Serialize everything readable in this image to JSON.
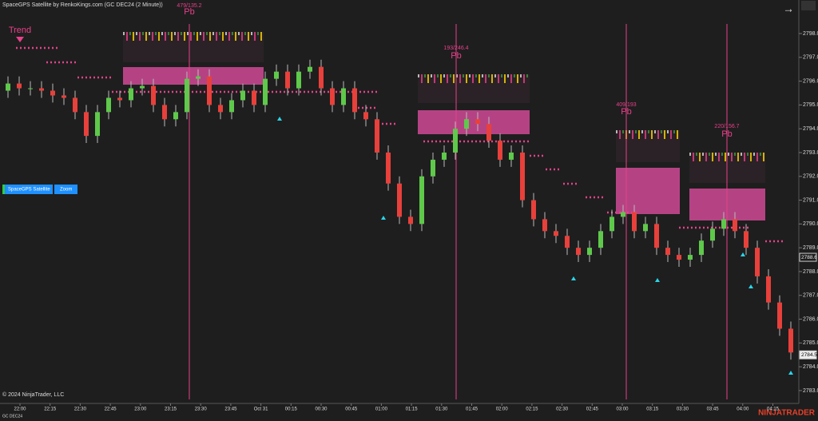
{
  "window": {
    "instrument": "GC DEC24",
    "copyright": "© 2024 NinjaTrader, LLC",
    "logo": "NINJATRADER",
    "buttons": [
      "SpaceGPS Satellite",
      "Zoom"
    ]
  },
  "chart_data": {
    "type": "candlestick",
    "title": "SpaceGPS Satellite by RenkoKings.com (GC DEC24 (2 Minute))",
    "up_color": "#5ec94a",
    "down_color": "#e8403b",
    "open": [
      2795.6,
      2795.9,
      2795.7,
      2795.7,
      2795.6,
      2795.4,
      2795.3,
      2794.7,
      2793.7,
      2794.7,
      2795.3,
      2795.2,
      2795.7,
      2795.8,
      2795.0,
      2794.4,
      2794.7,
      2796.1,
      2796.2,
      2795.0,
      2794.7,
      2795.2,
      2795.6,
      2795.0,
      2796.1,
      2796.4,
      2795.7,
      2796.4,
      2796.6,
      2795.7,
      2795.0,
      2795.7,
      2794.7,
      2794.4,
      2793.0,
      2791.7,
      2790.3,
      2790.0,
      2792.0,
      2792.7,
      2793.0,
      2794.0,
      2794.4,
      2794.2,
      2793.5,
      2792.7,
      2793.0,
      2791.0,
      2790.2,
      2789.7,
      2789.5,
      2789.0,
      2788.7,
      2789.0,
      2789.7,
      2790.3,
      2790.5,
      2789.7,
      2790.0,
      2789.0,
      2788.7,
      2788.5,
      2788.7,
      2789.3,
      2789.8,
      2790.2,
      2789.7,
      2789.0,
      2787.8,
      2786.7,
      2785.6
    ],
    "high": [
      2796.2,
      2796.2,
      2796.0,
      2796.0,
      2795.9,
      2795.7,
      2795.6,
      2795.0,
      2795.0,
      2795.6,
      2795.6,
      2796.0,
      2796.1,
      2796.1,
      2795.3,
      2795.0,
      2796.4,
      2796.5,
      2796.5,
      2795.3,
      2795.5,
      2795.9,
      2795.9,
      2796.4,
      2796.7,
      2796.7,
      2796.7,
      2796.9,
      2796.9,
      2796.0,
      2796.0,
      2796.0,
      2795.0,
      2794.7,
      2793.3,
      2792.0,
      2790.6,
      2792.3,
      2793.0,
      2793.3,
      2794.3,
      2794.7,
      2794.7,
      2794.5,
      2793.8,
      2793.3,
      2793.3,
      2791.3,
      2790.5,
      2790.0,
      2789.8,
      2789.3,
      2789.3,
      2790.0,
      2790.6,
      2790.8,
      2790.8,
      2790.3,
      2790.3,
      2789.3,
      2789.0,
      2789.0,
      2789.6,
      2790.1,
      2790.5,
      2790.5,
      2790.0,
      2789.3,
      2788.1,
      2787.0,
      2785.9
    ],
    "low": [
      2795.3,
      2795.4,
      2795.4,
      2795.3,
      2795.1,
      2795.0,
      2794.4,
      2793.4,
      2793.4,
      2794.4,
      2794.9,
      2794.9,
      2795.4,
      2794.7,
      2794.1,
      2794.1,
      2794.4,
      2795.8,
      2794.7,
      2794.4,
      2794.4,
      2794.9,
      2794.7,
      2794.7,
      2795.8,
      2795.4,
      2795.4,
      2796.1,
      2795.4,
      2794.7,
      2794.7,
      2794.4,
      2794.1,
      2792.7,
      2791.4,
      2790.0,
      2789.7,
      2789.7,
      2791.7,
      2792.4,
      2792.7,
      2793.7,
      2793.9,
      2793.2,
      2792.4,
      2792.4,
      2790.7,
      2789.9,
      2789.4,
      2789.2,
      2788.7,
      2788.4,
      2788.4,
      2788.7,
      2789.4,
      2790.0,
      2789.4,
      2789.4,
      2788.7,
      2788.4,
      2788.2,
      2788.2,
      2788.4,
      2789.0,
      2789.5,
      2789.4,
      2788.7,
      2787.5,
      2786.4,
      2785.3,
      2784.3
    ],
    "close": [
      2795.9,
      2795.7,
      2795.7,
      2795.6,
      2795.4,
      2795.3,
      2794.7,
      2793.7,
      2794.7,
      2795.3,
      2795.2,
      2795.7,
      2795.8,
      2795.0,
      2794.4,
      2794.7,
      2796.1,
      2796.2,
      2795.0,
      2794.7,
      2795.2,
      2795.6,
      2795.0,
      2796.1,
      2796.4,
      2795.7,
      2796.4,
      2796.6,
      2795.7,
      2795.0,
      2795.7,
      2794.7,
      2794.4,
      2793.0,
      2791.7,
      2790.3,
      2790.0,
      2792.0,
      2792.7,
      2793.0,
      2794.0,
      2794.4,
      2794.2,
      2793.5,
      2792.7,
      2793.0,
      2791.0,
      2790.2,
      2789.7,
      2789.5,
      2789.0,
      2788.7,
      2789.0,
      2789.7,
      2790.3,
      2790.5,
      2789.7,
      2790.0,
      2789.0,
      2788.7,
      2788.5,
      2788.7,
      2789.3,
      2789.8,
      2790.2,
      2789.7,
      2789.0,
      2787.8,
      2786.7,
      2785.6,
      2784.6
    ],
    "ylim": [
      2782.46,
      2799.41
    ],
    "yticks": [
      {
        "value": 2783,
        "label": "2783.0"
      },
      {
        "value": 2784,
        "label": "2784.0"
      },
      {
        "value": 2785,
        "label": "2785.0"
      },
      {
        "value": 2786,
        "label": "2786.0"
      },
      {
        "value": 2787,
        "label": "2787.0"
      },
      {
        "value": 2788,
        "label": "2788.0"
      },
      {
        "value": 2789,
        "label": "2789.0"
      },
      {
        "value": 2790,
        "label": "2790.0"
      },
      {
        "value": 2791,
        "label": "2791.0"
      },
      {
        "value": 2792,
        "label": "2792.0"
      },
      {
        "value": 2793,
        "label": "2793.0"
      },
      {
        "value": 2794,
        "label": "2794.0"
      },
      {
        "value": 2795,
        "label": "2795.0"
      },
      {
        "value": 2796,
        "label": "2796.0"
      },
      {
        "value": 2797,
        "label": "2797.0"
      },
      {
        "value": 2798,
        "label": "2798.0"
      }
    ],
    "xtick_labels": [
      "22:00",
      "22:15",
      "22:30",
      "22:45",
      "23:00",
      "23:15",
      "23:30",
      "23:45",
      "Oct 31",
      "00:15",
      "00:30",
      "00:45",
      "01:00",
      "01:15",
      "01:30",
      "01:45",
      "02:00",
      "02:15",
      "02:30",
      "02:45",
      "03:00",
      "03:15",
      "03:30",
      "03:45",
      "04:00",
      "04:15"
    ],
    "price_markers": [
      2788.6,
      2784.5
    ],
    "trend_label": "Trend",
    "pullbacks": [
      {
        "label": "479/135.2",
        "text": "Pb"
      },
      {
        "label": "193/246.4",
        "text": "Pb"
      },
      {
        "label": "409/193",
        "text": "Pb"
      },
      {
        "label": "220/156.7",
        "text": "Pb"
      }
    ]
  }
}
